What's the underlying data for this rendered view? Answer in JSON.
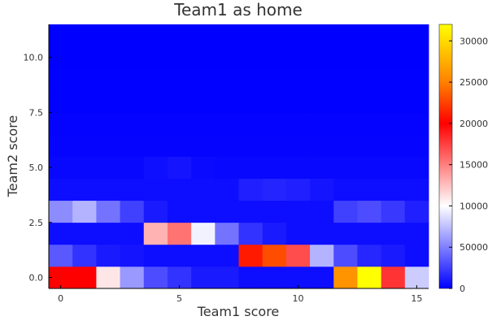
{
  "chart_data": {
    "type": "heatmap",
    "title": "Team1 as home",
    "xlabel": "Team1 score",
    "ylabel": "Team2 score",
    "x_range": [
      -0.5,
      15.5
    ],
    "y_range": [
      -0.5,
      11.5
    ],
    "x_ticks": [
      0,
      5,
      10,
      15
    ],
    "x_tick_labels": [
      "0",
      "5",
      "10",
      "15"
    ],
    "y_ticks": [
      0,
      2.5,
      5,
      7.5,
      10
    ],
    "y_tick_labels": [
      "0.0",
      "2.5",
      "5.0",
      "7.5",
      "10.0"
    ],
    "colorbar": {
      "range": [
        0,
        320000
      ],
      "ticks": [
        0,
        50000,
        100000,
        150000,
        200000,
        250000,
        300000
      ],
      "tick_labels": [
        "0",
        "50000",
        "100000",
        "150000",
        "200000",
        "250000",
        "300000"
      ],
      "colors": [
        "#0000ff",
        "#ffffff",
        "#ff0000",
        "#ffff00"
      ]
    },
    "z_values": [
      [
        200000,
        200000,
        110000,
        60000,
        30000,
        20000,
        10000,
        10000,
        5000,
        5000,
        5000,
        5000,
        260000,
        320000,
        180000,
        80000
      ],
      [
        35000,
        20000,
        10000,
        8000,
        5000,
        5000,
        5000,
        5000,
        210000,
        230000,
        170000,
        70000,
        30000,
        15000,
        10000,
        5000
      ],
      [
        5000,
        5000,
        5000,
        5000,
        130000,
        155000,
        95000,
        45000,
        20000,
        10000,
        5000,
        5000,
        5000,
        5000,
        5000,
        5000
      ],
      [
        55000,
        70000,
        45000,
        25000,
        10000,
        5000,
        5000,
        5000,
        5000,
        5000,
        5000,
        5000,
        25000,
        30000,
        22000,
        12000
      ],
      [
        5000,
        5000,
        5000,
        5000,
        5000,
        5000,
        5000,
        5000,
        12000,
        14000,
        12000,
        8000,
        5000,
        5000,
        5000,
        5000
      ],
      [
        3000,
        3000,
        3000,
        3000,
        6000,
        8000,
        4000,
        3000,
        3000,
        3000,
        3000,
        3000,
        3000,
        3000,
        3000,
        3000
      ],
      [
        2000,
        2000,
        2000,
        2000,
        2000,
        2000,
        2000,
        2000,
        2000,
        2000,
        2000,
        2000,
        2000,
        2000,
        2000,
        2000
      ],
      [
        1000,
        1000,
        1000,
        1000,
        1000,
        1000,
        1000,
        1000,
        1000,
        1000,
        1000,
        1000,
        1000,
        1000,
        1000,
        1000
      ],
      [
        500,
        500,
        500,
        500,
        500,
        500,
        500,
        500,
        500,
        500,
        500,
        500,
        500,
        500,
        500,
        500
      ],
      [
        200,
        200,
        200,
        200,
        200,
        200,
        200,
        200,
        200,
        200,
        200,
        200,
        200,
        200,
        200,
        200
      ],
      [
        100,
        100,
        100,
        100,
        100,
        100,
        100,
        100,
        100,
        100,
        100,
        100,
        100,
        100,
        100,
        100
      ],
      [
        50,
        50,
        50,
        50,
        50,
        50,
        50,
        50,
        50,
        50,
        50,
        50,
        50,
        50,
        50,
        50
      ]
    ]
  }
}
